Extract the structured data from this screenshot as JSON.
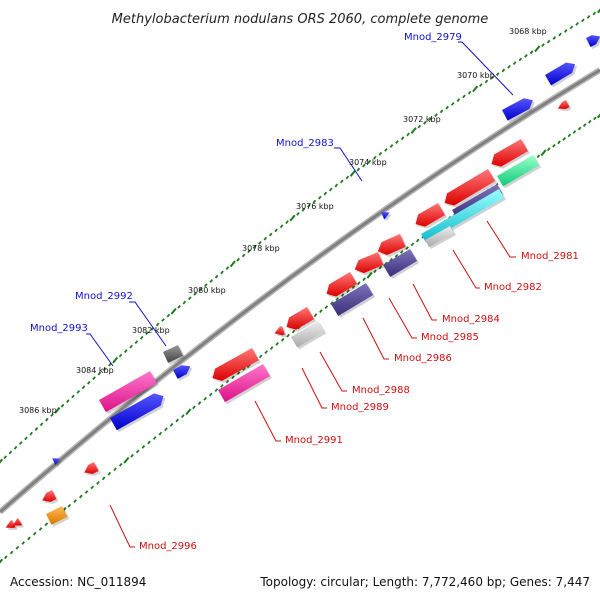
{
  "title": "Methylobacterium nodulans ORS 2060, complete genome",
  "footer": {
    "accession": "Accession: NC_011894",
    "summary": "Topology: circular; Length: 7,772,460 bp; Genes: 7,447"
  },
  "scale_ticks": [
    "3068 kbp",
    "3070 kbp",
    "3072 kbp",
    "3074 kbp",
    "3076 kbp",
    "3078 kbp",
    "3080 kbp",
    "3082 kbp",
    "3084 kbp",
    "3086 kbp"
  ],
  "gene_labels_top": [
    "Mnod_2979",
    "Mnod_2983",
    "Mnod_2992",
    "Mnod_2993"
  ],
  "gene_labels_bottom": [
    "Mnod_2981",
    "Mnod_2982",
    "Mnod_2984",
    "Mnod_2985",
    "Mnod_2986",
    "Mnod_2988",
    "Mnod_2989",
    "Mnod_2991",
    "Mnod_2996"
  ],
  "colors": {
    "backbone": "#909090",
    "ticks": "#1a7a1a",
    "red": "#ee1111",
    "blue": "#1010dd",
    "magenta": "#ee2299",
    "navy": "#4a3f8c",
    "lightgray": "#c8c8c8",
    "darkgray": "#606060",
    "cyan": "#22dddd",
    "teal": "#22ee88",
    "orange": "#ee8811"
  }
}
